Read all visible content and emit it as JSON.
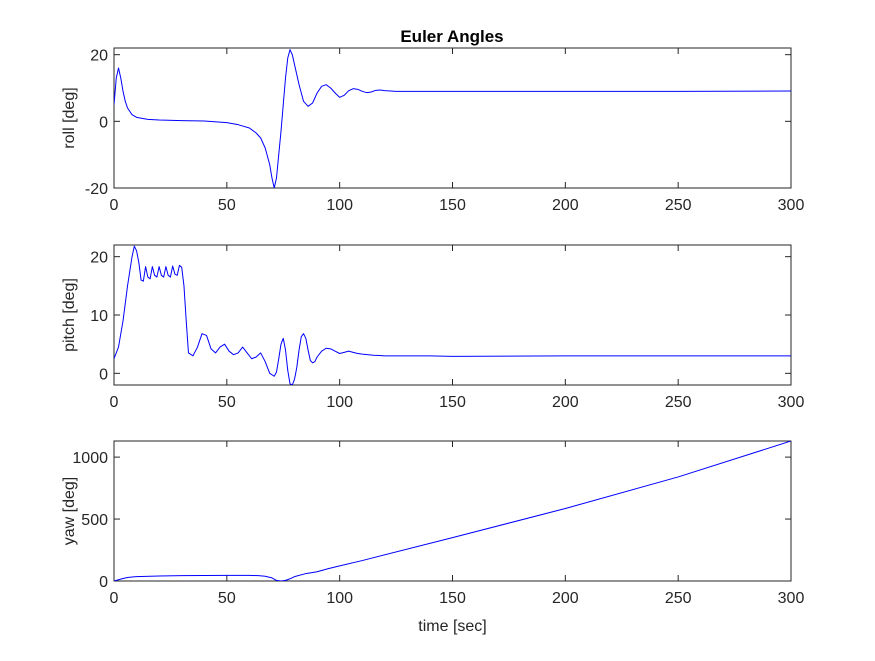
{
  "chart_data": [
    {
      "type": "line",
      "title": "Euler Angles",
      "ylabel": "roll [deg]",
      "xlabel": "",
      "xlim": [
        0,
        300
      ],
      "ylim": [
        -20,
        22
      ],
      "xticks": [
        0,
        50,
        100,
        150,
        200,
        250,
        300
      ],
      "yticks": [
        -20,
        0,
        20
      ],
      "grid": false,
      "line_color": "#0000ff",
      "series": [
        {
          "x": [
            0,
            1,
            2,
            3,
            4,
            5,
            6,
            8,
            10,
            15,
            20,
            30,
            40,
            50,
            55,
            60,
            63,
            65,
            67,
            69,
            70,
            71,
            72,
            73,
            74,
            75,
            76,
            77,
            78,
            79,
            80,
            82,
            84,
            86,
            88,
            90,
            92,
            94,
            96,
            98,
            100,
            102,
            104,
            106,
            108,
            110,
            112,
            114,
            116,
            118,
            120,
            125,
            130,
            140,
            150,
            175,
            200,
            250,
            300
          ],
          "y": [
            5,
            13,
            16,
            13,
            9,
            6,
            4,
            2,
            1.2,
            0.6,
            0.4,
            0.2,
            0.1,
            -0.4,
            -1,
            -2,
            -3.5,
            -5,
            -8,
            -13,
            -17,
            -20,
            -17,
            -10,
            -3,
            5,
            13,
            19,
            21.5,
            20,
            17,
            11,
            6,
            4.5,
            5.5,
            8.5,
            10.5,
            11.0,
            10,
            8.5,
            7.2,
            7.8,
            9.2,
            9.8,
            9.6,
            9.0,
            8.6,
            8.8,
            9.3,
            9.4,
            9.2,
            9.0,
            9.0,
            9.0,
            9.0,
            9.0,
            9.0,
            9.0,
            9.1
          ]
        }
      ]
    },
    {
      "type": "line",
      "title": "",
      "ylabel": "pitch [deg]",
      "xlabel": "",
      "xlim": [
        0,
        300
      ],
      "ylim": [
        -2,
        22
      ],
      "xticks": [
        0,
        50,
        100,
        150,
        200,
        250,
        300
      ],
      "yticks": [
        0,
        10,
        20
      ],
      "grid": false,
      "line_color": "#0000ff",
      "series": [
        {
          "x": [
            0,
            2,
            4,
            6,
            8,
            9,
            10,
            11,
            12,
            13,
            14,
            15,
            16,
            17,
            18,
            19,
            20,
            21,
            22,
            23,
            24,
            25,
            26,
            27,
            28,
            29,
            30,
            31,
            32,
            33,
            35,
            37,
            39,
            41,
            43,
            45,
            47,
            49,
            51,
            53,
            55,
            57,
            59,
            61,
            63,
            65,
            67,
            69,
            71,
            72,
            73,
            74,
            75,
            76,
            77,
            78,
            79,
            80,
            81,
            82,
            83,
            84,
            85,
            86,
            87,
            88,
            89,
            90,
            92,
            94,
            96,
            98,
            100,
            102,
            104,
            106,
            108,
            110,
            115,
            120,
            125,
            130,
            140,
            150,
            200,
            250,
            300
          ],
          "y": [
            2.5,
            4.5,
            9,
            15,
            20,
            21.8,
            21,
            19,
            16,
            15.8,
            18.3,
            16.5,
            16.2,
            18.3,
            16.8,
            16.5,
            18.3,
            16.8,
            16.5,
            18.3,
            16.8,
            16.5,
            18.4,
            17.0,
            16.8,
            18.5,
            18.2,
            15,
            9,
            3.5,
            3,
            4.5,
            6.8,
            6.5,
            4.2,
            3.5,
            4.5,
            5.0,
            3.8,
            3.2,
            3.5,
            4.5,
            3.5,
            2.5,
            2.8,
            3.5,
            2.0,
            0,
            -0.5,
            0.2,
            2.5,
            5.0,
            6.0,
            4.0,
            0.5,
            -1.8,
            -2.0,
            -1.0,
            1.0,
            4.0,
            6.3,
            6.8,
            6.0,
            4.0,
            2.2,
            1.8,
            2.0,
            2.8,
            3.8,
            4.3,
            4.2,
            3.8,
            3.4,
            3.6,
            3.8,
            3.6,
            3.4,
            3.3,
            3.1,
            3.0,
            3.0,
            3.0,
            3.0,
            2.9,
            3.0,
            3.0,
            3.0
          ]
        }
      ]
    },
    {
      "type": "line",
      "title": "",
      "ylabel": "yaw [deg]",
      "xlabel": "time [sec]",
      "xlim": [
        0,
        300
      ],
      "ylim": [
        0,
        1130
      ],
      "xticks": [
        0,
        50,
        100,
        150,
        200,
        250,
        300
      ],
      "yticks": [
        0,
        500,
        1000
      ],
      "grid": false,
      "line_color": "#0000ff",
      "series": [
        {
          "x": [
            0,
            2,
            4,
            6,
            8,
            10,
            20,
            30,
            40,
            50,
            60,
            64,
            67,
            70,
            72,
            74,
            76,
            78,
            80,
            85,
            90,
            95,
            100,
            110,
            150,
            200,
            250,
            300
          ],
          "y": [
            0,
            10,
            20,
            28,
            32,
            35,
            40,
            43,
            44,
            45,
            45,
            43,
            38,
            25,
            5,
            0,
            5,
            18,
            35,
            60,
            75,
            100,
            122,
            165,
            350,
            585,
            840,
            1130
          ]
        }
      ]
    }
  ]
}
